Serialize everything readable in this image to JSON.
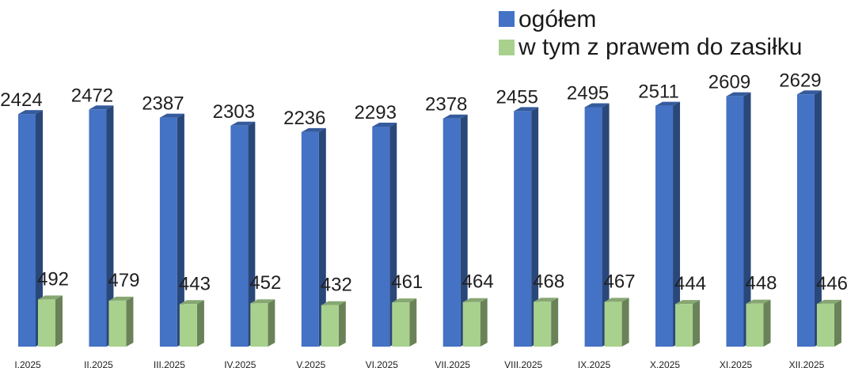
{
  "chart_data": {
    "type": "bar",
    "categories": [
      "I.2025",
      "II.2025",
      "III.2025",
      "IV.2025",
      "V.2025",
      "VI.2025",
      "VII.2025",
      "VIII.2025",
      "IX.2025",
      "X.2025",
      "XI.2025",
      "XII.2025"
    ],
    "series": [
      {
        "name": "ogółem",
        "values": [
          2424,
          2472,
          2387,
          2303,
          2236,
          2293,
          2378,
          2455,
          2495,
          2511,
          2609,
          2629
        ],
        "color": "#4472C4"
      },
      {
        "name": "w tym z prawem do zasiłku",
        "values": [
          492,
          479,
          443,
          452,
          432,
          461,
          464,
          468,
          467,
          444,
          448,
          446
        ],
        "color": "#A9D18E"
      }
    ],
    "title": "",
    "xlabel": "",
    "ylabel": "",
    "legend_position": "top-right",
    "grid": false,
    "style": "3d-column",
    "data_labels": true
  }
}
